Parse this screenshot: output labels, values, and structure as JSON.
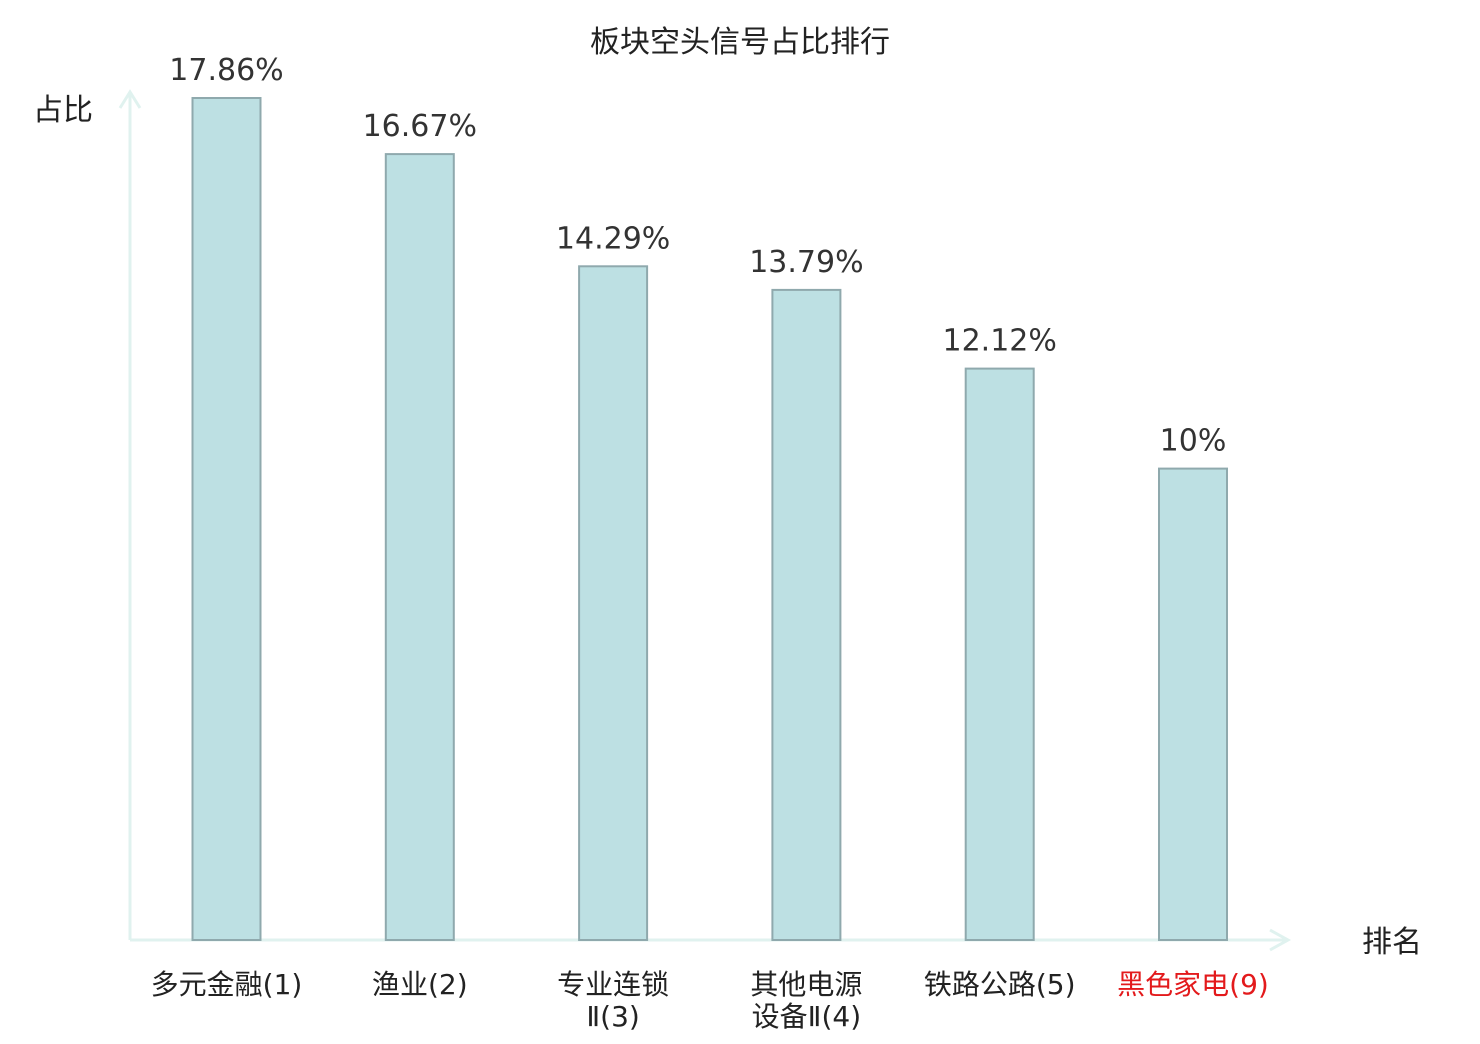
{
  "chart_data": {
    "type": "bar",
    "title": "板块空头信号占比排行",
    "ylabel": "占比",
    "xlabel": "排名",
    "categories": [
      [
        "多元金融(1)"
      ],
      [
        "渔业(2)"
      ],
      [
        "专业连锁",
        "Ⅱ(3)"
      ],
      [
        "其他电源",
        "设备Ⅱ(4)"
      ],
      [
        "铁路公路(5)"
      ],
      [
        "黑色家电(9)"
      ]
    ],
    "values": [
      17.86,
      16.67,
      14.29,
      13.79,
      12.12,
      10
    ],
    "value_labels": [
      "17.86%",
      "16.67%",
      "14.29%",
      "13.79%",
      "12.12%",
      "10%"
    ],
    "highlight_index": 5,
    "ylim": [
      0,
      17.86
    ],
    "grid": false,
    "colors": {
      "bar_fill": "#bde0e3",
      "bar_stroke": "#8fa9ad",
      "axis": "#e0f2ef",
      "text": "#333333",
      "highlight_text": "#e31a1c"
    }
  }
}
